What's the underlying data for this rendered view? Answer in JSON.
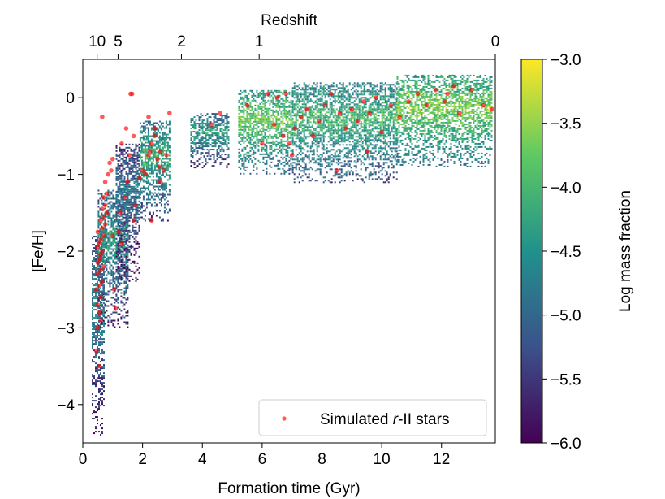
{
  "chart_data": {
    "type": "heatmap",
    "xlabel": "Formation time (Gyr)",
    "ylabel": "[Fe/H]",
    "top_axis_label": "Redshift",
    "colorbar_label": "Log mass fraction",
    "xlim": [
      0,
      13.8
    ],
    "ylim": [
      -4.5,
      0.5
    ],
    "x_ticks": [
      0,
      2,
      4,
      6,
      8,
      10,
      12
    ],
    "y_ticks": [
      0,
      -1,
      -2,
      -3,
      -4
    ],
    "top_ticks": [
      {
        "label": "10",
        "time": 0.48
      },
      {
        "label": "5",
        "time": 1.18
      },
      {
        "label": "2",
        "time": 3.3
      },
      {
        "label": "1",
        "time": 5.9
      },
      {
        "label": "0",
        "time": 13.8
      }
    ],
    "colorbar_range": [
      -6.0,
      -3.0
    ],
    "colorbar_ticks": [
      "-3.0",
      "-3.5",
      "-4.0",
      "-4.5",
      "-5.0",
      "-5.5",
      "-6.0"
    ],
    "colorbar_tick_values": [
      -3.0,
      -3.5,
      -4.0,
      -4.5,
      -5.0,
      -5.5,
      -6.0
    ],
    "colormap": [
      "#440154",
      "#3b528b",
      "#21918c",
      "#5ec962",
      "#fde725"
    ],
    "legend": {
      "label_prefix": "Simulated ",
      "label_italic": "r",
      "label_suffix": "-II stars",
      "position": "lower-right"
    },
    "scatter_color": "#ff0000",
    "density_regions": [
      {
        "t0": 0.3,
        "t1": 0.7,
        "fe0": -4.4,
        "fe1": -1.8,
        "level": -4.6
      },
      {
        "t0": 0.5,
        "t1": 1.5,
        "fe0": -3.0,
        "fe1": -1.2,
        "level": -4.4
      },
      {
        "t0": 1.1,
        "t1": 1.9,
        "fe0": -2.4,
        "fe1": -0.6,
        "level": -4.8
      },
      {
        "t0": 1.9,
        "t1": 2.9,
        "fe0": -1.6,
        "fe1": -0.3,
        "level": -4.1
      },
      {
        "t0": 3.6,
        "t1": 4.9,
        "fe0": -0.9,
        "fe1": -0.2,
        "level": -4.3
      },
      {
        "t0": 5.2,
        "t1": 7.0,
        "fe0": -1.0,
        "fe1": 0.1,
        "level": -3.7
      },
      {
        "t0": 7.0,
        "t1": 10.5,
        "fe0": -1.1,
        "fe1": 0.2,
        "level": -4.0
      },
      {
        "t0": 10.5,
        "t1": 13.7,
        "fe0": -0.9,
        "fe1": 0.3,
        "level": -3.6
      }
    ],
    "rII_stars": [
      [
        0.55,
        -3.5
      ],
      [
        0.45,
        -3.3
      ],
      [
        0.5,
        -3.0
      ],
      [
        0.6,
        -2.9
      ],
      [
        0.55,
        -2.8
      ],
      [
        0.5,
        -2.7
      ],
      [
        0.6,
        -2.6
      ],
      [
        0.45,
        -2.5
      ],
      [
        0.55,
        -2.45
      ],
      [
        0.65,
        -2.4
      ],
      [
        0.5,
        -2.3
      ],
      [
        0.6,
        -2.25
      ],
      [
        0.7,
        -2.2
      ],
      [
        0.5,
        -2.15
      ],
      [
        0.55,
        -2.1
      ],
      [
        0.6,
        -2.05
      ],
      [
        0.65,
        -2.0
      ],
      [
        0.5,
        -1.95
      ],
      [
        0.55,
        -1.9
      ],
      [
        0.6,
        -1.85
      ],
      [
        0.7,
        -1.8
      ],
      [
        0.5,
        -1.75
      ],
      [
        0.65,
        -1.7
      ],
      [
        0.75,
        -1.65
      ],
      [
        0.6,
        -1.6
      ],
      [
        0.7,
        -1.55
      ],
      [
        0.8,
        -1.5
      ],
      [
        0.65,
        -1.45
      ],
      [
        0.75,
        -1.4
      ],
      [
        0.7,
        -1.3
      ],
      [
        0.8,
        -1.25
      ],
      [
        0.75,
        -1.1
      ],
      [
        0.85,
        -1.0
      ],
      [
        0.95,
        -0.95
      ],
      [
        0.9,
        -0.85
      ],
      [
        1.0,
        -0.8
      ],
      [
        1.05,
        -2.5
      ],
      [
        1.1,
        -2.75
      ],
      [
        1.0,
        -1.8
      ],
      [
        1.2,
        -1.75
      ],
      [
        1.3,
        -1.9
      ],
      [
        1.25,
        -1.5
      ],
      [
        1.4,
        -1.3
      ],
      [
        1.5,
        -1.1
      ],
      [
        1.55,
        -0.75
      ],
      [
        1.6,
        0.05
      ],
      [
        1.3,
        -0.6
      ],
      [
        1.45,
        -0.4
      ],
      [
        1.7,
        -0.5
      ],
      [
        1.7,
        -1.6
      ],
      [
        1.75,
        -1.4
      ],
      [
        1.9,
        -1.05
      ],
      [
        2.0,
        -0.95
      ],
      [
        2.1,
        -1.0
      ],
      [
        2.2,
        -0.75
      ],
      [
        2.25,
        -0.7
      ],
      [
        2.3,
        -0.6
      ],
      [
        2.4,
        -0.5
      ],
      [
        2.5,
        -0.8
      ],
      [
        2.55,
        -0.9
      ],
      [
        2.6,
        -1.1
      ],
      [
        2.7,
        -0.95
      ],
      [
        2.8,
        -0.75
      ],
      [
        2.9,
        -0.2
      ],
      [
        2.2,
        -0.25
      ],
      [
        2.4,
        -0.4
      ],
      [
        2.3,
        -1.6
      ],
      [
        2.6,
        -0.7
      ],
      [
        0.65,
        -0.25
      ],
      [
        1.65,
        0.05
      ],
      [
        4.3,
        -0.35
      ],
      [
        4.6,
        -0.2
      ],
      [
        5.5,
        -0.1
      ],
      [
        6.2,
        0.05
      ],
      [
        6.4,
        -0.35
      ],
      [
        6.7,
        -0.5
      ],
      [
        6.9,
        -0.6
      ],
      [
        7.1,
        -0.4
      ],
      [
        7.3,
        -0.25
      ],
      [
        7.5,
        -0.15
      ],
      [
        7.7,
        -0.5
      ],
      [
        7.9,
        -0.3
      ],
      [
        8.1,
        -0.1
      ],
      [
        8.3,
        0.05
      ],
      [
        8.6,
        -0.2
      ],
      [
        8.8,
        -0.4
      ],
      [
        9.0,
        -0.15
      ],
      [
        9.2,
        -0.3
      ],
      [
        9.4,
        -0.05
      ],
      [
        9.6,
        -0.2
      ],
      [
        9.8,
        0.0
      ],
      [
        10.0,
        -0.45
      ],
      [
        10.3,
        -0.1
      ],
      [
        10.6,
        -0.25
      ],
      [
        10.9,
        -0.05
      ],
      [
        11.2,
        0.05
      ],
      [
        11.5,
        -0.1
      ],
      [
        11.8,
        0.1
      ],
      [
        12.1,
        -0.05
      ],
      [
        12.4,
        0.15
      ],
      [
        12.6,
        -0.2
      ],
      [
        13.0,
        0.1
      ],
      [
        13.4,
        -0.1
      ],
      [
        13.7,
        -0.15
      ],
      [
        6.0,
        -0.6
      ],
      [
        6.5,
        0.0
      ],
      [
        7.0,
        -0.75
      ],
      [
        8.5,
        -0.95
      ],
      [
        9.5,
        -0.7
      ],
      [
        12.2,
        0.05
      ],
      [
        6.8,
        0.05
      ]
    ]
  }
}
